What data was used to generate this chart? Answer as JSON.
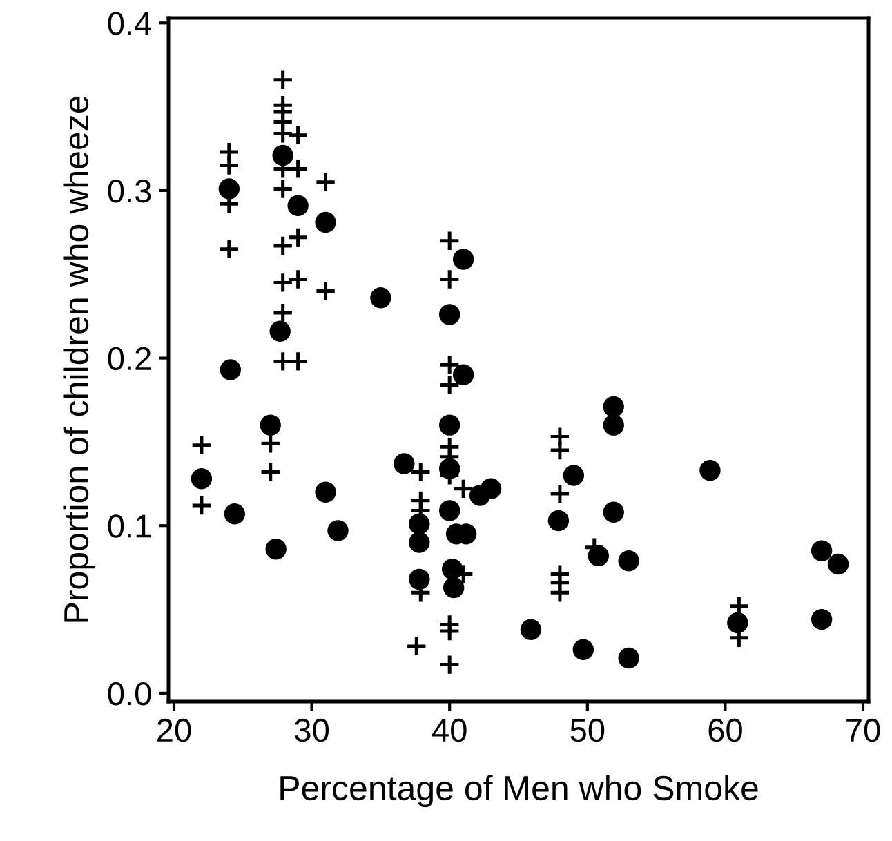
{
  "chart_data": {
    "type": "scatter",
    "xlabel": "Percentage of Men who Smoke",
    "ylabel": "Proportion of children who wheeze",
    "xlim": [
      19.6,
      70.4
    ],
    "ylim": [
      -0.005,
      0.403
    ],
    "xticks": [
      20,
      30,
      40,
      50,
      60,
      70
    ],
    "yticks": [
      {
        "value": 0,
        "label": "0.0"
      },
      0.1,
      0.2,
      0.3,
      0.4
    ],
    "grid": false,
    "legend": false,
    "series": [
      {
        "color": "#000000",
        "marker": "circle",
        "x": [
          22,
          24,
          24.1,
          24.4,
          27,
          27.4,
          31,
          31.9,
          36.7,
          40,
          40,
          40,
          40.5,
          40.2,
          40.3,
          41.2,
          42.2,
          43,
          37.8,
          37.8,
          37.8,
          27.9,
          29,
          31,
          27.7,
          35,
          41,
          40,
          41,
          51.9,
          51.9,
          49,
          58.9,
          47.9,
          51.9,
          50.8,
          53,
          67,
          68.2,
          60.9,
          67,
          45.9,
          49.7,
          53
        ],
        "values": [
          0.128,
          0.301,
          0.193,
          0.107,
          0.16,
          0.086,
          0.12,
          0.097,
          0.137,
          0.16,
          0.134,
          0.109,
          0.095,
          0.074,
          0.063,
          0.095,
          0.118,
          0.122,
          0.101,
          0.09,
          0.068,
          0.321,
          0.291,
          0.281,
          0.216,
          0.236,
          0.259,
          0.226,
          0.19,
          0.171,
          0.16,
          0.13,
          0.133,
          0.103,
          0.108,
          0.082,
          0.079,
          0.085,
          0.077,
          0.042,
          0.044,
          0.038,
          0.026,
          0.021
        ]
      },
      {
        "color": "#000000",
        "marker": "cross",
        "x": [
          24,
          24,
          24,
          24,
          27.9,
          27.9,
          27.9,
          27.9,
          27.9,
          27.9,
          27.9,
          27.9,
          27.9,
          27.9,
          27.9,
          29,
          29,
          29,
          29,
          29,
          31,
          31,
          40,
          40,
          40,
          22,
          22,
          27,
          27,
          40,
          40,
          40,
          40,
          40,
          40,
          40,
          37.9,
          37.9,
          37.9,
          37.9,
          37.6,
          41,
          41,
          48,
          48,
          48,
          48,
          48,
          48,
          50.5,
          61,
          61
        ],
        "values": [
          0.323,
          0.315,
          0.292,
          0.265,
          0.366,
          0.351,
          0.347,
          0.341,
          0.334,
          0.313,
          0.301,
          0.267,
          0.245,
          0.227,
          0.198,
          0.333,
          0.313,
          0.272,
          0.247,
          0.198,
          0.305,
          0.24,
          0.27,
          0.247,
          0.196,
          0.148,
          0.112,
          0.149,
          0.132,
          0.184,
          0.147,
          0.141,
          0.13,
          0.041,
          0.037,
          0.017,
          0.132,
          0.115,
          0.109,
          0.06,
          0.028,
          0.071,
          0.122,
          0.153,
          0.145,
          0.119,
          0.071,
          0.066,
          0.06,
          0.087,
          0.052,
          0.033
        ]
      }
    ]
  }
}
